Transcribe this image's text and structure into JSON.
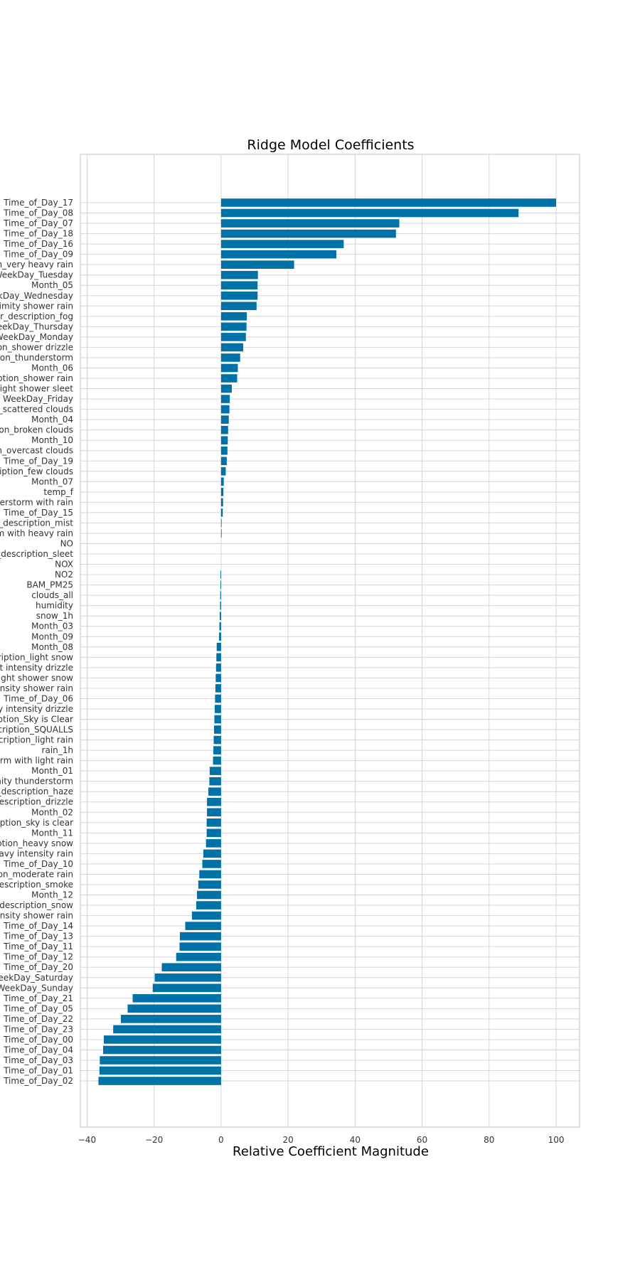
{
  "chart_data": {
    "type": "bar",
    "orientation": "horizontal",
    "title": "Ridge Model Coefficients",
    "xlabel": "Relative Coefficient Magnitude",
    "ylabel": "",
    "xlim": [
      -42,
      107
    ],
    "xticks": [
      "−40",
      "−20",
      "0",
      "20",
      "40",
      "60",
      "80",
      "100"
    ],
    "xtick_values": [
      -40,
      -20,
      0,
      20,
      40,
      60,
      80,
      100
    ],
    "grid": true,
    "bar_color": "#0072a8",
    "categories": [
      "Time_of_Day_17",
      "Time_of_Day_08",
      "Time_of_Day_07",
      "Time_of_Day_18",
      "Time_of_Day_16",
      "Time_of_Day_09",
      "on_very heavy rain",
      "WeekDay_Tuesday",
      "Month_05",
      "ekDay_Wednesday",
      "oximity shower rain",
      "er_description_fog",
      "WeekDay_Thursday",
      "WeekDay_Monday",
      "ion_shower drizzle",
      "tion_thunderstorm",
      "Month_06",
      "cription_shower rain",
      "_light shower sleet",
      "WeekDay_Friday",
      "n_scattered clouds",
      "Month_04",
      "tion_broken clouds",
      "Month_10",
      "on_overcast clouds",
      "Time_of_Day_19",
      "scription_few clouds",
      "Month_07",
      "temp_f",
      "nderstorm with rain",
      "Time_of_Day_15",
      "r_description_mist",
      "rm with heavy rain",
      "NO",
      "r_description_sleet",
      "NOX",
      "NO2",
      "BAM_PM25",
      "clouds_all",
      "humidity",
      "snow_1h",
      "Month_03",
      "Month_09",
      "Month_08",
      "scription_light snow",
      "ght intensity drizzle",
      "_light shower snow",
      "ntensity shower rain",
      "Time_of_Day_06",
      "avy intensity drizzle",
      "ription_Sky is Clear",
      "scription_SQUALLS",
      "escription_light rain",
      "rain_1h",
      "storm with light rain",
      "Month_01",
      "imity thunderstorm",
      "_description_haze",
      "description_drizzle",
      "Month_02",
      "ription_sky is clear",
      "Month_11",
      "cription_heavy snow",
      "heavy intensity rain",
      "Time_of_Day_10",
      "tion_moderate rain",
      "description_smoke",
      "Month_12",
      "_description_snow",
      "tensity shower rain",
      "Time_of_Day_14",
      "Time_of_Day_13",
      "Time_of_Day_11",
      "Time_of_Day_12",
      "Time_of_Day_20",
      "WeekDay_Saturday",
      "WeekDay_Sunday",
      "Time_of_Day_21",
      "Time_of_Day_05",
      "Time_of_Day_22",
      "Time_of_Day_23",
      "Time_of_Day_00",
      "Time_of_Day_04",
      "Time_of_Day_03",
      "Time_of_Day_01",
      "Time_of_Day_02"
    ],
    "values": [
      100,
      88.8,
      53.2,
      52.2,
      36.6,
      34.4,
      21.8,
      11.0,
      10.9,
      10.9,
      10.6,
      7.7,
      7.6,
      7.4,
      6.6,
      5.7,
      5.0,
      4.8,
      3.2,
      2.6,
      2.5,
      2.3,
      2.1,
      2.0,
      1.9,
      1.7,
      1.4,
      0.8,
      0.7,
      0.6,
      0.5,
      0.1,
      0.05,
      0.0,
      0.0,
      0.0,
      -0.2,
      -0.2,
      -0.25,
      -0.3,
      -0.4,
      -0.5,
      -0.6,
      -1.3,
      -1.4,
      -1.5,
      -1.6,
      -1.7,
      -1.8,
      -1.9,
      -2.0,
      -2.1,
      -2.2,
      -2.3,
      -2.4,
      -3.4,
      -3.5,
      -3.8,
      -4.2,
      -4.2,
      -4.3,
      -4.3,
      -4.5,
      -5.3,
      -5.6,
      -6.5,
      -6.8,
      -7.2,
      -7.4,
      -8.7,
      -10.7,
      -12.3,
      -12.4,
      -13.4,
      -17.7,
      -19.8,
      -20.4,
      -26.4,
      -27.9,
      -29.9,
      -32.2,
      -35.0,
      -35.2,
      -36.2,
      -36.3,
      -36.6
    ]
  }
}
